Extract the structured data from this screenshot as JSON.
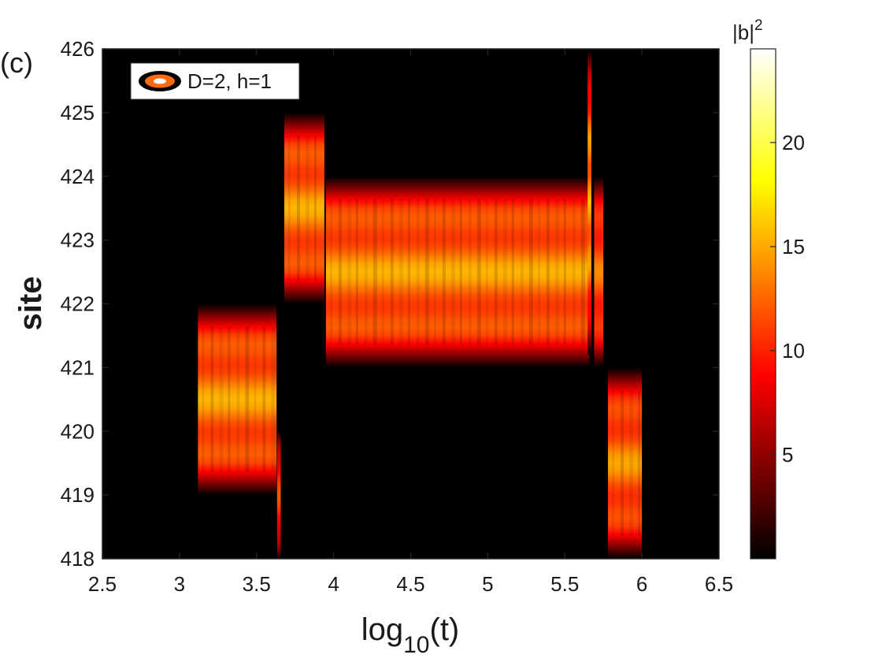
{
  "panel_label": "(c)",
  "chart_data": {
    "type": "heatmap",
    "xlabel": {
      "base": "log",
      "subscript": "10",
      "suffix": "(t)"
    },
    "ylabel": "site",
    "xlim": [
      2.5,
      6.5
    ],
    "ylim": [
      418,
      426
    ],
    "xticks": [
      "2.5",
      "3",
      "3.5",
      "4",
      "4.5",
      "5",
      "5.5",
      "6",
      "6.5"
    ],
    "xtick_values": [
      2.5,
      3,
      3.5,
      4,
      4.5,
      5,
      5.5,
      6,
      6.5
    ],
    "yticks": [
      "418",
      "419",
      "420",
      "421",
      "422",
      "423",
      "424",
      "425",
      "426"
    ],
    "ytick_values": [
      418,
      419,
      420,
      421,
      422,
      423,
      424,
      425,
      426
    ],
    "colormap": "hot",
    "colorbar": {
      "label_base": "|b|",
      "label_exponent": "2",
      "range": [
        0,
        24.5
      ],
      "ticks": [
        "5",
        "10",
        "15",
        "20"
      ],
      "tick_values": [
        5,
        10,
        15,
        20
      ]
    },
    "legend": {
      "text": "D=2, h=1",
      "position": "top-left"
    },
    "regions": [
      {
        "name": "localized-421-region",
        "t_start": 3.12,
        "t_end": 3.63,
        "site_low": 419,
        "site_high": 422,
        "peak_value": 15.5
      },
      {
        "name": "localized-424-region",
        "t_start": 3.68,
        "t_end": 3.94,
        "site_low": 422,
        "site_high": 425,
        "peak_value": 15.5
      },
      {
        "name": "localized-422-region",
        "t_start": 3.95,
        "t_end": 5.66,
        "site_low": 421,
        "site_high": 424,
        "peak_value": 15.5
      },
      {
        "name": "transition-streak-423",
        "t_start": 5.69,
        "t_end": 5.75,
        "site_low": 421,
        "site_high": 424,
        "peak_value": 14
      },
      {
        "name": "localized-419-region",
        "t_start": 5.78,
        "t_end": 6.0,
        "site_low": 418,
        "site_high": 421,
        "peak_value": 15
      }
    ],
    "spikes": [
      {
        "name": "spike-t5.66",
        "t": 5.66,
        "site_low": 421.2,
        "site_high": 426,
        "peak_value": 16
      },
      {
        "name": "spike-t3.65",
        "t": 3.645,
        "site_low": 418,
        "site_high": 420,
        "peak_value": 12
      }
    ]
  },
  "colors": {
    "frame": "#262626",
    "background": "#000000",
    "legend_marker_outer": "#000000",
    "legend_marker_mid": "#ff6a10",
    "legend_marker_inner": "#ffffff"
  }
}
